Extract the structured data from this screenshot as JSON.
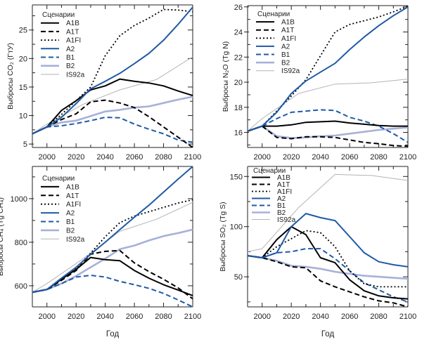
{
  "figure": {
    "legend_title": "Сценарии",
    "xlabel": "Год"
  },
  "series_styles": {
    "A1B": {
      "color": "#000000",
      "style": "solid",
      "weight": "heavy"
    },
    "A1T": {
      "color": "#000000",
      "style": "dashed",
      "weight": "heavy"
    },
    "A1FI": {
      "color": "#000000",
      "style": "dotted",
      "weight": "heavy"
    },
    "A2": {
      "color": "#1f5aa6",
      "style": "solid",
      "weight": "heavy"
    },
    "B1": {
      "color": "#1f5aa6",
      "style": "dashed",
      "weight": "heavy"
    },
    "B2": {
      "color": "#a7b1d9",
      "style": "solid",
      "weight": "heavy"
    },
    "IS92a": {
      "color": "#b4b4b4",
      "style": "solid",
      "weight": "thin"
    }
  },
  "chart_data": [
    {
      "type": "line",
      "id": "co2",
      "title": "",
      "ylabel": "Выбросы CO₂ (ГтУ)",
      "xlabel": "",
      "xlim": [
        1990,
        2100
      ],
      "ylim": [
        4.4,
        29.4
      ],
      "xticks": [
        2000,
        2020,
        2040,
        2060,
        2080,
        2100
      ],
      "yticks": [
        5,
        10,
        15,
        20,
        25
      ],
      "legend": "top-left",
      "series": [
        {
          "name": "A1B",
          "x": [
            1990,
            2000,
            2010,
            2020,
            2030,
            2040,
            2050,
            2060,
            2070,
            2080,
            2090,
            2100
          ],
          "values": [
            6.8,
            8.0,
            10.9,
            12.6,
            14.5,
            15.2,
            16.4,
            16.0,
            15.7,
            15.2,
            14.3,
            13.5
          ]
        },
        {
          "name": "A1T",
          "x": [
            1990,
            2000,
            2010,
            2020,
            2030,
            2040,
            2050,
            2060,
            2070,
            2080,
            2090,
            2100
          ],
          "values": [
            6.8,
            8.0,
            9.3,
            10.3,
            12.4,
            12.7,
            12.2,
            11.4,
            9.8,
            8.0,
            6.2,
            4.4
          ]
        },
        {
          "name": "A1FI",
          "x": [
            1990,
            2000,
            2010,
            2020,
            2030,
            2040,
            2050,
            2060,
            2070,
            2080,
            2090,
            2100
          ],
          "values": [
            6.8,
            8.0,
            10.2,
            12.6,
            15.0,
            20.5,
            24.0,
            25.8,
            27.1,
            28.6,
            28.5,
            28.2
          ]
        },
        {
          "name": "A2",
          "x": [
            1990,
            2000,
            2010,
            2020,
            2030,
            2040,
            2050,
            2060,
            2070,
            2080,
            2090,
            2100
          ],
          "values": [
            6.8,
            8.0,
            9.7,
            12.1,
            14.7,
            16.0,
            17.4,
            19.1,
            20.9,
            23.2,
            26.0,
            29.0
          ]
        },
        {
          "name": "B1",
          "x": [
            1990,
            2000,
            2010,
            2020,
            2030,
            2040,
            2050,
            2060,
            2070,
            2080,
            2090,
            2100
          ],
          "values": [
            6.8,
            8.0,
            8.2,
            8.6,
            9.1,
            9.7,
            9.6,
            8.5,
            7.6,
            6.8,
            5.7,
            5.3
          ]
        },
        {
          "name": "B2",
          "x": [
            1990,
            2000,
            2010,
            2020,
            2030,
            2040,
            2050,
            2060,
            2070,
            2080,
            2090,
            2100
          ],
          "values": [
            6.8,
            8.0,
            8.8,
            9.1,
            9.9,
            10.7,
            11.0,
            11.4,
            11.6,
            12.2,
            12.8,
            13.3
          ]
        },
        {
          "name": "IS92a",
          "x": [
            1990,
            2000,
            2025,
            2050,
            2075,
            2100
          ],
          "values": [
            6.8,
            8.5,
            12.0,
            14.5,
            16.3,
            20.3
          ]
        }
      ]
    },
    {
      "type": "line",
      "id": "n2o",
      "title": "",
      "ylabel": "Выбросы N₂O (Tg N)",
      "xlabel": "",
      "xlim": [
        1990,
        2100
      ],
      "ylim": [
        14.8,
        26.1
      ],
      "xticks": [
        2000,
        2020,
        2040,
        2060,
        2080,
        2100
      ],
      "yticks": [
        16,
        18,
        20,
        22,
        24,
        26
      ],
      "legend": "top-left",
      "series": [
        {
          "name": "A1B",
          "x": [
            1990,
            2000,
            2010,
            2020,
            2030,
            2040,
            2050,
            2060,
            2070,
            2080,
            2090,
            2100
          ],
          "values": [
            16.1,
            16.5,
            16.5,
            16.6,
            16.8,
            16.85,
            16.9,
            16.75,
            16.65,
            16.55,
            16.5,
            16.5
          ]
        },
        {
          "name": "A1T",
          "x": [
            1990,
            2000,
            2010,
            2020,
            2030,
            2040,
            2050,
            2060,
            2070,
            2080,
            2090,
            2100
          ],
          "values": [
            16.1,
            16.5,
            15.6,
            15.5,
            15.65,
            15.65,
            15.6,
            15.4,
            15.2,
            15.1,
            14.95,
            14.9
          ]
        },
        {
          "name": "A1FI",
          "x": [
            1990,
            2000,
            2010,
            2020,
            2030,
            2040,
            2050,
            2060,
            2070,
            2080,
            2090,
            2100
          ],
          "values": [
            16.1,
            16.5,
            17.7,
            18.9,
            20.2,
            22.1,
            24.0,
            24.6,
            24.9,
            25.2,
            25.6,
            26.05
          ]
        },
        {
          "name": "A2",
          "x": [
            1990,
            2000,
            2010,
            2020,
            2030,
            2040,
            2050,
            2060,
            2070,
            2080,
            2090,
            2100
          ],
          "values": [
            16.1,
            16.5,
            17.6,
            19.1,
            20.1,
            20.8,
            21.5,
            22.6,
            23.6,
            24.5,
            25.3,
            26.0
          ]
        },
        {
          "name": "B1",
          "x": [
            1990,
            2000,
            2010,
            2020,
            2030,
            2040,
            2050,
            2060,
            2070,
            2080,
            2090,
            2100
          ],
          "values": [
            16.1,
            16.5,
            17.1,
            17.6,
            17.7,
            17.8,
            17.75,
            17.2,
            16.9,
            16.5,
            15.9,
            15.2
          ]
        },
        {
          "name": "B2",
          "x": [
            1990,
            2000,
            2010,
            2020,
            2030,
            2040,
            2050,
            2060,
            2070,
            2080,
            2090,
            2100
          ],
          "values": [
            16.1,
            16.5,
            15.7,
            15.55,
            15.6,
            15.7,
            15.75,
            15.9,
            16.05,
            16.2,
            16.3,
            16.4
          ]
        },
        {
          "name": "IS92a",
          "x": [
            1990,
            2000,
            2025,
            2050,
            2075,
            2100
          ],
          "values": [
            16.1,
            17.1,
            19.1,
            19.85,
            19.95,
            20.25
          ]
        }
      ]
    },
    {
      "type": "line",
      "id": "ch4",
      "title": "",
      "ylabel": "Выбросы CH₄ (Tg CH₄)",
      "xlabel": "Год",
      "xlim": [
        1990,
        2100
      ],
      "ylim": [
        503,
        1148
      ],
      "xticks": [
        2000,
        2020,
        2040,
        2060,
        2080,
        2100
      ],
      "yticks": [
        600,
        800,
        1000
      ],
      "legend": "top-left",
      "series": [
        {
          "name": "A1B",
          "x": [
            1990,
            2000,
            2010,
            2020,
            2030,
            2040,
            2050,
            2060,
            2070,
            2080,
            2090,
            2100
          ],
          "values": [
            570,
            583,
            630,
            675,
            730,
            720,
            715,
            670,
            635,
            605,
            580,
            555
          ]
        },
        {
          "name": "A1T",
          "x": [
            1990,
            2000,
            2010,
            2020,
            2030,
            2040,
            2050,
            2060,
            2070,
            2080,
            2090,
            2100
          ],
          "values": [
            570,
            583,
            625,
            670,
            745,
            758,
            762,
            705,
            665,
            630,
            590,
            540
          ]
        },
        {
          "name": "A1FI",
          "x": [
            1990,
            2000,
            2010,
            2020,
            2030,
            2040,
            2050,
            2060,
            2070,
            2080,
            2090,
            2100
          ],
          "values": [
            570,
            583,
            635,
            680,
            750,
            825,
            890,
            920,
            940,
            960,
            980,
            995
          ]
        },
        {
          "name": "A2",
          "x": [
            1990,
            2000,
            2010,
            2020,
            2030,
            2040,
            2050,
            2060,
            2070,
            2080,
            2090,
            2100
          ],
          "values": [
            570,
            583,
            635,
            685,
            745,
            800,
            858,
            915,
            970,
            1030,
            1090,
            1148
          ]
        },
        {
          "name": "B1",
          "x": [
            1990,
            2000,
            2010,
            2020,
            2030,
            2040,
            2050,
            2060,
            2070,
            2080,
            2090,
            2100
          ],
          "values": [
            570,
            583,
            610,
            640,
            648,
            640,
            620,
            605,
            588,
            565,
            535,
            503
          ]
        },
        {
          "name": "B2",
          "x": [
            1990,
            2000,
            2010,
            2020,
            2030,
            2040,
            2050,
            2060,
            2070,
            2080,
            2090,
            2100
          ],
          "values": [
            570,
            583,
            610,
            645,
            685,
            725,
            768,
            785,
            808,
            828,
            842,
            858
          ]
        },
        {
          "name": "IS92a",
          "x": [
            1990,
            2000,
            2025,
            2050,
            2075,
            2100
          ],
          "values": [
            570,
            610,
            725,
            850,
            905,
            983
          ]
        }
      ]
    },
    {
      "type": "line",
      "id": "so2",
      "title": "",
      "ylabel": "Выбросы SO₂ (Tg S)",
      "xlabel": "Год",
      "xlim": [
        1990,
        2100
      ],
      "ylim": [
        20,
        160
      ],
      "xticks": [
        2000,
        2020,
        2040,
        2060,
        2080,
        2100
      ],
      "yticks": [
        50,
        100,
        150
      ],
      "legend": "top-left",
      "series": [
        {
          "name": "A1B",
          "x": [
            1990,
            2000,
            2010,
            2020,
            2030,
            2040,
            2050,
            2060,
            2070,
            2080,
            2090,
            2100
          ],
          "values": [
            71,
            69,
            87,
            100,
            92,
            69,
            64,
            47,
            36,
            31,
            29,
            28
          ]
        },
        {
          "name": "A1T",
          "x": [
            1990,
            2000,
            2010,
            2020,
            2030,
            2040,
            2050,
            2060,
            2070,
            2080,
            2090,
            2100
          ],
          "values": [
            71,
            69,
            65,
            60,
            59,
            46,
            40,
            35,
            30,
            26,
            24,
            20
          ]
        },
        {
          "name": "A1FI",
          "x": [
            1990,
            2000,
            2010,
            2020,
            2030,
            2040,
            2050,
            2060,
            2070,
            2080,
            2090,
            2100
          ],
          "values": [
            71,
            69,
            80,
            88,
            96,
            94,
            80,
            56,
            43,
            40,
            40,
            40
          ]
        },
        {
          "name": "A2",
          "x": [
            1990,
            2000,
            2010,
            2020,
            2030,
            2040,
            2050,
            2060,
            2070,
            2080,
            2090,
            2100
          ],
          "values": [
            71,
            69,
            74,
            100,
            113,
            109,
            106,
            90,
            74,
            65,
            62,
            60
          ]
        },
        {
          "name": "B1",
          "x": [
            1990,
            2000,
            2010,
            2020,
            2030,
            2040,
            2050,
            2060,
            2070,
            2080,
            2090,
            2100
          ],
          "values": [
            71,
            69,
            74,
            75,
            78,
            78,
            68,
            56,
            44,
            37,
            30,
            25
          ]
        },
        {
          "name": "B2",
          "x": [
            1990,
            2000,
            2010,
            2020,
            2030,
            2040,
            2050,
            2060,
            2070,
            2080,
            2090,
            2100
          ],
          "values": [
            71,
            69,
            66,
            61,
            60,
            58,
            55,
            53,
            51,
            50,
            49,
            48
          ]
        },
        {
          "name": "IS92a",
          "x": [
            1990,
            2000,
            2025,
            2050,
            2075,
            2100
          ],
          "values": [
            75,
            78,
            119,
            152,
            151,
            146
          ]
        }
      ]
    }
  ]
}
